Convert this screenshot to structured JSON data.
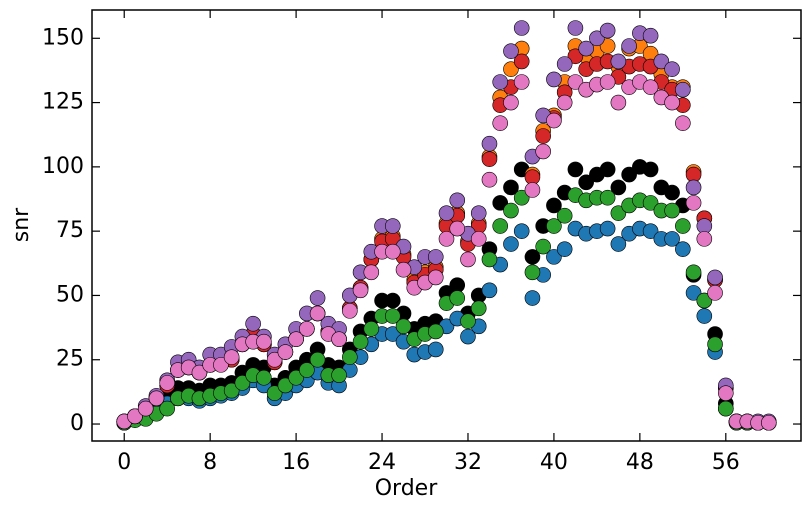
{
  "chart_data": {
    "type": "scatter",
    "x_label": "Order",
    "y_label": "snr",
    "x": [
      0,
      1,
      2,
      3,
      4,
      5,
      6,
      7,
      8,
      9,
      10,
      11,
      12,
      13,
      14,
      15,
      16,
      17,
      18,
      19,
      20,
      21,
      22,
      23,
      24,
      25,
      26,
      27,
      28,
      29,
      30,
      31,
      32,
      33,
      34,
      35,
      36,
      37,
      38,
      39,
      40,
      41,
      42,
      43,
      44,
      45,
      46,
      47,
      48,
      49,
      50,
      51,
      52,
      53,
      54,
      55,
      56,
      57,
      58,
      59,
      60
    ],
    "xlim": [
      -3,
      63
    ],
    "ylim": [
      -6.6,
      161
    ],
    "xticks": [
      0,
      8,
      16,
      24,
      32,
      40,
      48,
      56
    ],
    "yticks": [
      0,
      25,
      50,
      75,
      100,
      125,
      150
    ],
    "series": [
      {
        "color": "#000000",
        "values": [
          0.5,
          3,
          6,
          9,
          12,
          14,
          14,
          13,
          15,
          15,
          16,
          20,
          23,
          22,
          15,
          18,
          22,
          25,
          29,
          23,
          22,
          29,
          36,
          41,
          48,
          48,
          43,
          37,
          39,
          40,
          51,
          54,
          43,
          50,
          68,
          86,
          92,
          99,
          65,
          77,
          85,
          90,
          99,
          94,
          97,
          99,
          92,
          97,
          100,
          99,
          92,
          90,
          85,
          58,
          48,
          35,
          8,
          1,
          0.5,
          0.5,
          0.5
        ]
      },
      {
        "color": "#1f77b4",
        "values": [
          0.5,
          2,
          4,
          7,
          8,
          10,
          10,
          9,
          10,
          11,
          12,
          14,
          17,
          15,
          10,
          12,
          15,
          17,
          20,
          16,
          15,
          21,
          26,
          31,
          35,
          35,
          32,
          27,
          28,
          29,
          38,
          41,
          34,
          38,
          52,
          62,
          70,
          75,
          49,
          58,
          65,
          68,
          76,
          74,
          75,
          76,
          70,
          74,
          76,
          75,
          72,
          72,
          68,
          51,
          42,
          28,
          6,
          0.5,
          0.5,
          0.5,
          0.5
        ]
      },
      {
        "color": "#ff7f0e",
        "values": [
          1,
          3,
          6,
          10,
          15,
          21,
          22,
          20,
          23,
          24,
          25,
          31,
          35,
          31,
          24,
          28,
          33,
          37,
          43,
          36,
          33,
          45,
          53,
          64,
          72,
          73,
          66,
          56,
          59,
          61,
          78,
          82,
          71,
          78,
          104,
          127,
          138,
          146,
          97,
          114,
          120,
          133,
          147,
          143,
          145,
          147,
          139,
          146,
          147,
          144,
          136,
          131,
          131,
          98,
          80,
          56,
          14,
          1,
          1,
          0.5,
          0.5
        ]
      },
      {
        "color": "#2ca02c",
        "values": [
          0.5,
          1.5,
          2,
          4,
          6,
          10,
          11,
          10,
          11,
          12,
          13,
          16,
          19,
          18,
          12,
          15,
          18,
          21,
          25,
          19,
          19,
          26,
          32,
          37,
          42,
          42,
          38,
          33,
          35,
          36,
          47,
          49,
          40,
          45,
          64,
          77,
          83,
          88,
          59,
          69,
          77,
          81,
          89,
          87,
          88,
          88,
          82,
          85,
          87,
          86,
          83,
          83,
          77,
          59,
          48,
          31,
          6,
          0.5,
          0.5,
          0.5,
          0.5
        ]
      },
      {
        "color": "#d62728",
        "values": [
          1,
          3,
          6,
          10,
          15,
          21,
          22,
          20,
          23,
          24,
          25,
          31,
          35,
          31,
          24,
          28,
          33,
          37,
          43,
          36,
          33,
          45,
          53,
          64,
          71,
          72,
          65,
          55,
          58,
          60,
          77,
          81,
          70,
          77,
          103,
          124,
          131,
          141,
          96,
          112,
          119,
          129,
          143,
          138,
          140,
          141,
          135,
          139,
          140,
          139,
          133,
          130,
          124,
          97,
          80,
          56,
          14,
          1,
          1,
          0.5,
          0.5
        ]
      },
      {
        "color": "#9467bd",
        "values": [
          1,
          3,
          7,
          11,
          17,
          24,
          25,
          22,
          27,
          27,
          30,
          34,
          39,
          34,
          27,
          31,
          37,
          43,
          49,
          39,
          37,
          50,
          59,
          67,
          77,
          77,
          69,
          61,
          65,
          65,
          82,
          87,
          74,
          82,
          109,
          133,
          145,
          154,
          104,
          120,
          134,
          140,
          154,
          146,
          150,
          153,
          141,
          147,
          152,
          151,
          141,
          138,
          130,
          92,
          77,
          57,
          15,
          1,
          1,
          1,
          1
        ]
      },
      {
        "color": "#e377c2",
        "values": [
          1,
          3,
          6,
          10,
          16,
          21,
          22,
          20,
          23,
          23,
          26,
          31,
          32,
          32,
          25,
          28,
          33,
          37,
          43,
          35,
          33,
          44,
          52,
          59,
          67,
          67,
          60,
          53,
          55,
          57,
          72,
          76,
          64,
          72,
          95,
          117,
          125,
          133,
          91,
          106,
          118,
          125,
          133,
          130,
          132,
          133,
          125,
          131,
          133,
          131,
          127,
          125,
          117,
          86,
          72,
          51,
          12,
          1,
          1,
          0.5,
          0.5
        ]
      }
    ]
  }
}
